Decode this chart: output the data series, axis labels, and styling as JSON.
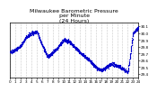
{
  "title": "Milwaukee Barometric Pressure\nper Minute\n(24 Hours)",
  "title_fontsize": 4.5,
  "dot_color": "#0000cc",
  "dot_size": 0.8,
  "background_color": "#ffffff",
  "ylim": [
    29.35,
    30.15
  ],
  "xlim": [
    0,
    1440
  ],
  "yticks": [
    29.4,
    29.5,
    29.6,
    29.7,
    29.8,
    29.9,
    30.0,
    30.1
  ],
  "ytick_labels": [
    "29.4",
    "29.5",
    "29.6",
    "29.7",
    "29.8",
    "29.9",
    "30.0",
    "30.1"
  ],
  "xticks": [
    0,
    60,
    120,
    180,
    240,
    300,
    360,
    420,
    480,
    540,
    600,
    660,
    720,
    780,
    840,
    900,
    960,
    1020,
    1080,
    1140,
    1200,
    1260,
    1320,
    1380,
    1440
  ],
  "xtick_labels": [
    "0",
    "1",
    "2",
    "3",
    "4",
    "5",
    "6",
    "7",
    "8",
    "9",
    "10",
    "11",
    "12",
    "13",
    "14",
    "15",
    "16",
    "17",
    "18",
    "19",
    "20",
    "21",
    "22",
    "23",
    "24"
  ],
  "grid_color": "#999999",
  "tick_fontsize": 3.0,
  "seed": 42,
  "key_times_hours": [
    0,
    1,
    2,
    3,
    4,
    5,
    6,
    7,
    8,
    9,
    10,
    11,
    12,
    13,
    14,
    15,
    16,
    17,
    18,
    19,
    20,
    21,
    22,
    23,
    24
  ],
  "key_pressures": [
    29.72,
    29.76,
    29.82,
    29.94,
    30.0,
    30.02,
    29.82,
    29.65,
    29.72,
    29.8,
    29.9,
    29.88,
    29.8,
    29.72,
    29.65,
    29.58,
    29.5,
    29.45,
    29.5,
    29.55,
    29.52,
    29.48,
    29.42,
    30.0,
    30.08
  ]
}
